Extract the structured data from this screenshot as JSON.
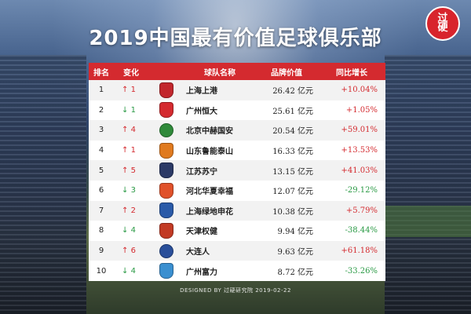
{
  "title": "2019中国最有价值足球俱乐部",
  "badge": {
    "text_top": "过",
    "text_bottom": "硬"
  },
  "table": {
    "headers": {
      "rank": "排名",
      "change": "变化",
      "team": "球队名称",
      "value": "品牌价值",
      "growth": "同比增长"
    },
    "rows": [
      {
        "rank": "1",
        "arrow": "↑",
        "dir": "up",
        "delta": "1",
        "team": "上海上港",
        "value": "26.42 亿元",
        "growth": "+10.04%",
        "logo_color": "#c2272d",
        "logo_shape": "shield"
      },
      {
        "rank": "2",
        "arrow": "↓",
        "dir": "down",
        "delta": "1",
        "team": "广州恒大",
        "value": "25.61 亿元",
        "growth": "+1.05%",
        "logo_color": "#d42a2f",
        "logo_shape": "shield"
      },
      {
        "rank": "3",
        "arrow": "↑",
        "dir": "up",
        "delta": "4",
        "team": "北京中赫国安",
        "value": "20.54 亿元",
        "growth": "+59.01%",
        "logo_color": "#2f8a3a",
        "logo_shape": "round"
      },
      {
        "rank": "4",
        "arrow": "↑",
        "dir": "up",
        "delta": "1",
        "team": "山东鲁能泰山",
        "value": "16.33 亿元",
        "growth": "+13.53%",
        "logo_color": "#e07a1f",
        "logo_shape": "shield"
      },
      {
        "rank": "5",
        "arrow": "↑",
        "dir": "up",
        "delta": "5",
        "team": "江苏苏宁",
        "value": "13.15 亿元",
        "growth": "+41.03%",
        "logo_color": "#2c3a66",
        "logo_shape": "shield"
      },
      {
        "rank": "6",
        "arrow": "↓",
        "dir": "down",
        "delta": "3",
        "team": "河北华夏幸福",
        "value": "12.07 亿元",
        "growth": "-29.12%",
        "logo_color": "#e0512a",
        "logo_shape": "shield"
      },
      {
        "rank": "7",
        "arrow": "↑",
        "dir": "up",
        "delta": "2",
        "team": "上海绿地申花",
        "value": "10.38 亿元",
        "growth": "+5.79%",
        "logo_color": "#2a5aa8",
        "logo_shape": "shield"
      },
      {
        "rank": "8",
        "arrow": "↓",
        "dir": "down",
        "delta": "4",
        "team": "天津权健",
        "value": "9.94 亿元",
        "growth": "-38.44%",
        "logo_color": "#c23a24",
        "logo_shape": "shield"
      },
      {
        "rank": "9",
        "arrow": "↑",
        "dir": "up",
        "delta": "6",
        "team": "大连人",
        "value": "9.63 亿元",
        "growth": "+61.18%",
        "logo_color": "#2a4f9a",
        "logo_shape": "round"
      },
      {
        "rank": "10",
        "arrow": "↓",
        "dir": "down",
        "delta": "4",
        "team": "广州富力",
        "value": "8.72 亿元",
        "growth": "-33.26%",
        "logo_color": "#3a8fd0",
        "logo_shape": "shield"
      }
    ]
  },
  "footer": "DESIGNED BY 过硬研究院   2019-02-22"
}
